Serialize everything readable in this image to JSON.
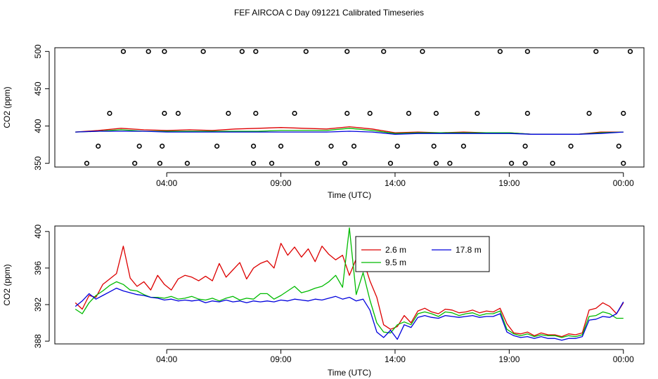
{
  "title": "FEF AIRCOA C  Day 091221  Calibrated Timeseries",
  "colors": {
    "red": "#dd0000",
    "green": "#00bb00",
    "blue": "#0000dd",
    "axis": "#000000"
  },
  "chart_data": [
    {
      "type": "scatter",
      "title": "",
      "xlabel": "Time (UTC)",
      "ylabel": "CO2 (ppm)",
      "xlim": [
        -0.9,
        24.9
      ],
      "ylim": [
        345,
        505
      ],
      "x_ticks": [
        {
          "value": 4,
          "label": "04:00"
        },
        {
          "value": 9,
          "label": "09:00"
        },
        {
          "value": 14,
          "label": "14:00"
        },
        {
          "value": 19,
          "label": "19:00"
        },
        {
          "value": 24,
          "label": "00:00"
        }
      ],
      "y_ticks": [
        {
          "value": 350,
          "label": "350"
        },
        {
          "value": 400,
          "label": "400"
        },
        {
          "value": 450,
          "label": "450"
        },
        {
          "value": 500,
          "label": "500"
        }
      ],
      "flag_points": {
        "x": [
          0.5,
          1.0,
          1.5,
          2.1,
          2.6,
          2.8,
          3.2,
          3.7,
          3.8,
          3.9,
          3.9,
          4.5,
          4.9,
          5.6,
          6.2,
          6.7,
          7.3,
          7.8,
          7.8,
          7.9,
          7.9,
          8.6,
          9.0,
          9.6,
          10.1,
          10.6,
          11.2,
          11.8,
          11.9,
          11.9,
          12.2,
          12.9,
          13.5,
          13.8,
          14.1,
          14.6,
          15.2,
          15.7,
          15.8,
          15.8,
          16.4,
          17.0,
          17.6,
          18.6,
          19.1,
          19.7,
          19.7,
          19.8,
          19.8,
          20.9,
          21.7,
          22.5,
          22.8,
          23.8,
          24.0,
          24.0,
          24.3
        ],
        "y": [
          350,
          373,
          417,
          500,
          350,
          373,
          500,
          350,
          373,
          417,
          500,
          417,
          350,
          500,
          373,
          417,
          500,
          350,
          373,
          417,
          500,
          350,
          373,
          417,
          500,
          350,
          373,
          350,
          417,
          500,
          373,
          417,
          500,
          350,
          373,
          417,
          500,
          373,
          350,
          417,
          350,
          373,
          417,
          500,
          350,
          350,
          373,
          417,
          500,
          350,
          373,
          417,
          500,
          373,
          350,
          417,
          500
        ]
      },
      "series": [
        {
          "name": "2.6 m",
          "color": "#dd0000",
          "x": [
            0,
            1,
            2,
            3,
            4,
            5,
            6,
            7,
            8,
            9,
            10,
            11,
            12,
            13,
            14,
            15,
            16,
            17,
            18,
            19,
            20,
            21,
            22,
            23,
            24
          ],
          "values": [
            392,
            394,
            397,
            395,
            394,
            395,
            394,
            396,
            397,
            398,
            397,
            396,
            399,
            396,
            391,
            392,
            391,
            392,
            391,
            391,
            389,
            389,
            389,
            392,
            392
          ]
        },
        {
          "name": "9.5 m",
          "color": "#00bb00",
          "x": [
            0,
            1,
            2,
            3,
            4,
            5,
            6,
            7,
            8,
            9,
            10,
            11,
            12,
            13,
            14,
            15,
            16,
            17,
            18,
            19,
            20,
            21,
            22,
            23,
            24
          ],
          "values": [
            392,
            393,
            395,
            393,
            393,
            393,
            393,
            393,
            393,
            394,
            394,
            394,
            397,
            394,
            390,
            391,
            391,
            391,
            391,
            391,
            389,
            389,
            389,
            391,
            392
          ]
        },
        {
          "name": "17.8 m",
          "color": "#0000dd",
          "x": [
            0,
            1,
            2,
            3,
            4,
            5,
            6,
            7,
            8,
            9,
            10,
            11,
            12,
            13,
            14,
            15,
            16,
            17,
            18,
            19,
            20,
            21,
            22,
            23,
            24
          ],
          "values": [
            392,
            393,
            393,
            393,
            392,
            392,
            392,
            392,
            392,
            392,
            392,
            392,
            393,
            392,
            389,
            390,
            390,
            390,
            390,
            390,
            389,
            389,
            389,
            390,
            392
          ]
        }
      ]
    },
    {
      "type": "line",
      "title": "",
      "xlabel": "Time (UTC)",
      "ylabel": "CO2 (ppm)",
      "xlim": [
        -0.9,
        24.9
      ],
      "ylim": [
        387.7,
        400.6
      ],
      "x_ticks": [
        {
          "value": 4,
          "label": "04:00"
        },
        {
          "value": 9,
          "label": "09:00"
        },
        {
          "value": 14,
          "label": "14:00"
        },
        {
          "value": 19,
          "label": "19:00"
        },
        {
          "value": 24,
          "label": "00:00"
        }
      ],
      "y_ticks": [
        {
          "value": 388,
          "label": "388"
        },
        {
          "value": 392,
          "label": "392"
        },
        {
          "value": 396,
          "label": "396"
        },
        {
          "value": 400,
          "label": "400"
        }
      ],
      "legend": {
        "placement": "top-center",
        "entries": [
          "2.6 m",
          "17.8 m",
          "9.5 m"
        ]
      },
      "series": [
        {
          "name": "2.6 m",
          "color": "#dd0000",
          "x": [
            0,
            0.3,
            0.6,
            0.9,
            1.2,
            1.5,
            1.8,
            2.1,
            2.4,
            2.7,
            3.0,
            3.3,
            3.6,
            3.9,
            4.2,
            4.5,
            4.8,
            5.1,
            5.4,
            5.7,
            6.0,
            6.3,
            6.6,
            6.9,
            7.2,
            7.5,
            7.8,
            8.1,
            8.4,
            8.7,
            9.0,
            9.3,
            9.6,
            9.9,
            10.2,
            10.5,
            10.8,
            11.1,
            11.4,
            11.7,
            12.0,
            12.3,
            12.6,
            12.9,
            13.2,
            13.5,
            13.8,
            14.1,
            14.4,
            14.7,
            15.0,
            15.3,
            15.6,
            15.9,
            16.2,
            16.5,
            16.8,
            17.1,
            17.4,
            17.7,
            18.0,
            18.3,
            18.6,
            18.9,
            19.2,
            19.5,
            19.8,
            20.1,
            20.4,
            20.7,
            21.0,
            21.3,
            21.6,
            21.9,
            22.2,
            22.5,
            22.8,
            23.1,
            23.4,
            23.7,
            24.0
          ],
          "values": [
            392.2,
            391.5,
            393.0,
            392.8,
            394.2,
            394.8,
            395.4,
            398.4,
            394.9,
            394.0,
            394.5,
            393.6,
            395.2,
            394.2,
            393.6,
            394.8,
            395.2,
            395.0,
            394.6,
            395.1,
            394.6,
            396.5,
            395.0,
            395.8,
            396.6,
            394.8,
            396.0,
            396.5,
            396.8,
            396.0,
            398.7,
            397.4,
            398.3,
            397.2,
            398.1,
            396.7,
            398.4,
            397.5,
            396.9,
            397.4,
            395.2,
            397.0,
            396.9,
            394.6,
            392.8,
            389.8,
            389.3,
            389.6,
            390.8,
            390.0,
            391.3,
            391.6,
            391.2,
            391.0,
            391.5,
            391.4,
            391.1,
            391.2,
            391.4,
            391.1,
            391.3,
            391.2,
            391.6,
            389.9,
            388.9,
            388.8,
            389.0,
            388.6,
            388.9,
            388.7,
            388.7,
            388.5,
            388.8,
            388.7,
            388.9,
            391.4,
            391.6,
            392.2,
            391.8,
            391.0,
            392.2
          ]
        },
        {
          "name": "9.5 m",
          "color": "#00bb00",
          "x": [
            0,
            0.3,
            0.6,
            0.9,
            1.2,
            1.5,
            1.8,
            2.1,
            2.4,
            2.7,
            3.0,
            3.3,
            3.6,
            3.9,
            4.2,
            4.5,
            4.8,
            5.1,
            5.4,
            5.7,
            6.0,
            6.3,
            6.6,
            6.9,
            7.2,
            7.5,
            7.8,
            8.1,
            8.4,
            8.7,
            9.0,
            9.3,
            9.6,
            9.9,
            10.2,
            10.5,
            10.8,
            11.1,
            11.4,
            11.7,
            12.0,
            12.3,
            12.6,
            12.9,
            13.2,
            13.5,
            13.8,
            14.1,
            14.4,
            14.7,
            15.0,
            15.3,
            15.6,
            15.9,
            16.2,
            16.5,
            16.8,
            17.1,
            17.4,
            17.7,
            18.0,
            18.3,
            18.6,
            18.9,
            19.2,
            19.5,
            19.8,
            20.1,
            20.4,
            20.7,
            21.0,
            21.3,
            21.6,
            21.9,
            22.2,
            22.5,
            22.8,
            23.1,
            23.4,
            23.7,
            24.0
          ],
          "values": [
            391.5,
            391.0,
            392.2,
            393.0,
            393.5,
            394.1,
            394.5,
            394.2,
            393.6,
            393.5,
            393.1,
            392.8,
            392.8,
            392.7,
            392.9,
            392.6,
            392.7,
            392.9,
            392.6,
            392.5,
            392.7,
            392.4,
            392.7,
            392.9,
            392.5,
            392.7,
            392.6,
            393.2,
            393.2,
            392.6,
            393.0,
            393.5,
            394.0,
            393.3,
            393.5,
            393.8,
            394.0,
            394.5,
            395.2,
            393.9,
            400.4,
            393.1,
            395.5,
            392.5,
            390.0,
            389.0,
            388.9,
            389.8,
            390.1,
            389.8,
            391.0,
            391.2,
            391.0,
            390.7,
            391.2,
            391.1,
            390.8,
            391.0,
            391.1,
            390.8,
            391.0,
            391.0,
            391.3,
            389.3,
            388.8,
            388.6,
            388.8,
            388.5,
            388.7,
            388.6,
            388.6,
            388.4,
            388.6,
            388.5,
            388.7,
            390.7,
            390.8,
            391.2,
            391.0,
            390.5,
            390.5
          ]
        },
        {
          "name": "17.8 m",
          "color": "#0000dd",
          "x": [
            0,
            0.3,
            0.6,
            0.9,
            1.2,
            1.5,
            1.8,
            2.1,
            2.4,
            2.7,
            3.0,
            3.3,
            3.6,
            3.9,
            4.2,
            4.5,
            4.8,
            5.1,
            5.4,
            5.7,
            6.0,
            6.3,
            6.6,
            6.9,
            7.2,
            7.5,
            7.8,
            8.1,
            8.4,
            8.7,
            9.0,
            9.3,
            9.6,
            9.9,
            10.2,
            10.5,
            10.8,
            11.1,
            11.4,
            11.7,
            12.0,
            12.3,
            12.6,
            12.9,
            13.2,
            13.5,
            13.8,
            14.1,
            14.4,
            14.7,
            15.0,
            15.3,
            15.6,
            15.9,
            16.2,
            16.5,
            16.8,
            17.1,
            17.4,
            17.7,
            18.0,
            18.3,
            18.6,
            18.9,
            19.2,
            19.5,
            19.8,
            20.1,
            20.4,
            20.7,
            21.0,
            21.3,
            21.6,
            21.9,
            22.2,
            22.5,
            22.8,
            23.1,
            23.4,
            23.7,
            24.0
          ],
          "values": [
            391.8,
            392.4,
            393.2,
            392.6,
            393.0,
            393.4,
            393.8,
            393.5,
            393.3,
            393.1,
            393.0,
            392.8,
            392.7,
            392.5,
            392.6,
            392.4,
            392.5,
            392.4,
            392.5,
            392.2,
            392.4,
            392.3,
            392.5,
            392.3,
            392.4,
            392.2,
            392.4,
            392.3,
            392.4,
            392.3,
            392.5,
            392.4,
            392.6,
            392.5,
            392.4,
            392.6,
            392.5,
            392.7,
            392.9,
            392.6,
            392.8,
            392.4,
            392.6,
            391.4,
            389.0,
            388.4,
            389.2,
            388.2,
            389.8,
            389.5,
            390.6,
            390.8,
            390.6,
            390.5,
            390.8,
            390.7,
            390.6,
            390.7,
            390.8,
            390.6,
            390.7,
            390.7,
            391.0,
            389.0,
            388.6,
            388.4,
            388.5,
            388.3,
            388.5,
            388.3,
            388.3,
            388.1,
            388.3,
            388.3,
            388.5,
            390.3,
            390.4,
            390.7,
            390.6,
            391.0,
            392.3
          ]
        }
      ]
    }
  ]
}
